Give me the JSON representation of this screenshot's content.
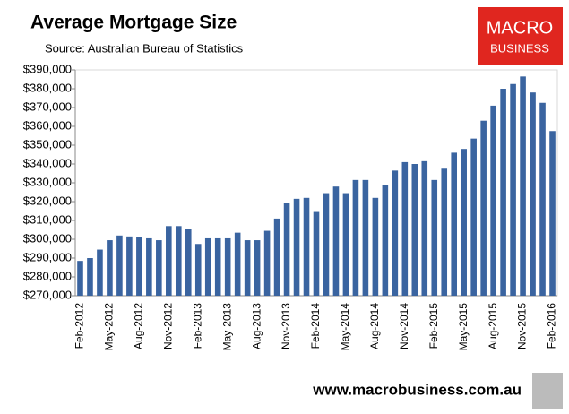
{
  "chart_data": {
    "type": "bar",
    "title": "Average Mortgage Size",
    "subtitle": "Source: Australian Bureau of Statistics",
    "categories": [
      "Feb-2012",
      null,
      null,
      "May-2012",
      null,
      null,
      "Aug-2012",
      null,
      null,
      "Nov-2012",
      null,
      null,
      "Feb-2013",
      null,
      null,
      "May-2013",
      null,
      null,
      "Aug-2013",
      null,
      null,
      "Nov-2013",
      null,
      null,
      "Feb-2014",
      null,
      null,
      "May-2014",
      null,
      null,
      "Aug-2014",
      null,
      null,
      "Nov-2014",
      null,
      null,
      "Feb-2015",
      null,
      null,
      "May-2015",
      null,
      null,
      "Aug-2015",
      null,
      null,
      "Nov-2015",
      null,
      null,
      "Feb-2016"
    ],
    "values": [
      288500,
      290000,
      294500,
      299500,
      302000,
      301500,
      301000,
      300500,
      299500,
      307000,
      307000,
      305500,
      297500,
      300500,
      300500,
      300500,
      303500,
      299500,
      299500,
      304500,
      311000,
      319500,
      321500,
      322000,
      314500,
      324500,
      328000,
      324500,
      331500,
      331500,
      322000,
      329000,
      336500,
      341000,
      340000,
      341500,
      331500,
      337500,
      346000,
      348000,
      353500,
      363000,
      371000,
      380000,
      382500,
      386500,
      378000,
      372500,
      357500
    ],
    "color": "#3a64a0",
    "ylim": [
      270000,
      390000
    ],
    "yticks": [
      {
        "value": 270000,
        "label": "$270,000"
      },
      {
        "value": 280000,
        "label": "$280,000"
      },
      {
        "value": 290000,
        "label": "$290,000"
      },
      {
        "value": 300000,
        "label": "$300,000"
      },
      {
        "value": 310000,
        "label": "$310,000"
      },
      {
        "value": 320000,
        "label": "$320,000"
      },
      {
        "value": 330000,
        "label": "$330,000"
      },
      {
        "value": 340000,
        "label": "$340,000"
      },
      {
        "value": 350000,
        "label": "$350,000"
      },
      {
        "value": 360000,
        "label": "$360,000"
      },
      {
        "value": 370000,
        "label": "$370,000"
      },
      {
        "value": 380000,
        "label": "$380,000"
      },
      {
        "value": 390000,
        "label": "$390,000"
      }
    ],
    "grid": false
  },
  "logo": {
    "line1": "MACRO",
    "line2": "BUSINESS"
  },
  "footer": "www.macrobusiness.com.au"
}
